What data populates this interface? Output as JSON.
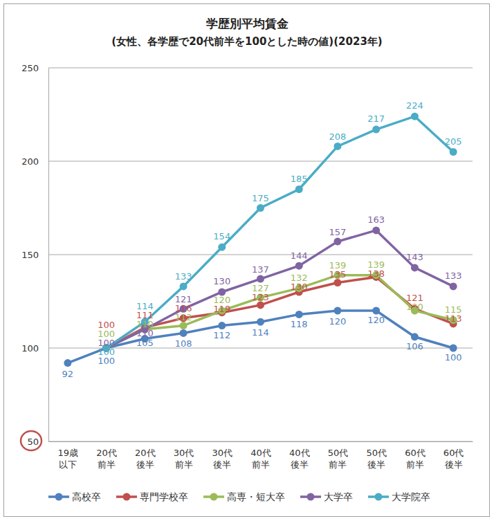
{
  "chart_data": {
    "type": "line",
    "title": "学歴別平均賃金",
    "subtitle": "(女性、各学歴で20代前半を100とした時の値)(2023年)",
    "categories": [
      "19歳\n以下",
      "20代\n前半",
      "20代\n後半",
      "30代\n前半",
      "30代\n後半",
      "40代\n前半",
      "40代\n後半",
      "50代\n前半",
      "50代\n後半",
      "60代\n前半",
      "60代\n後半"
    ],
    "series": [
      {
        "name": "高校卒",
        "color": "#4f81bd",
        "values": [
          92,
          100,
          105,
          108,
          112,
          114,
          118,
          120,
          120,
          106,
          100
        ]
      },
      {
        "name": "専門学校卒",
        "color": "#c0504d",
        "values": [
          null,
          100,
          111,
          116,
          119,
          123,
          130,
          135,
          138,
          121,
          113
        ]
      },
      {
        "name": "高専・短大卒",
        "color": "#9bbb59",
        "values": [
          null,
          100,
          110,
          112,
          120,
          127,
          132,
          139,
          139,
          120,
          115
        ]
      },
      {
        "name": "大学卒",
        "color": "#8064a2",
        "values": [
          null,
          100,
          110,
          121,
          130,
          137,
          144,
          157,
          163,
          143,
          133
        ]
      },
      {
        "name": "大学院卒",
        "color": "#4bacc6",
        "values": [
          null,
          100,
          114,
          133,
          154,
          175,
          185,
          208,
          217,
          224,
          205
        ]
      }
    ],
    "ylim": [
      50,
      250
    ],
    "yticks": [
      50,
      100,
      150,
      200,
      250
    ],
    "grid": true,
    "legend": "bottom",
    "data_labels": true,
    "marker": "circle",
    "line_style": "solid"
  }
}
